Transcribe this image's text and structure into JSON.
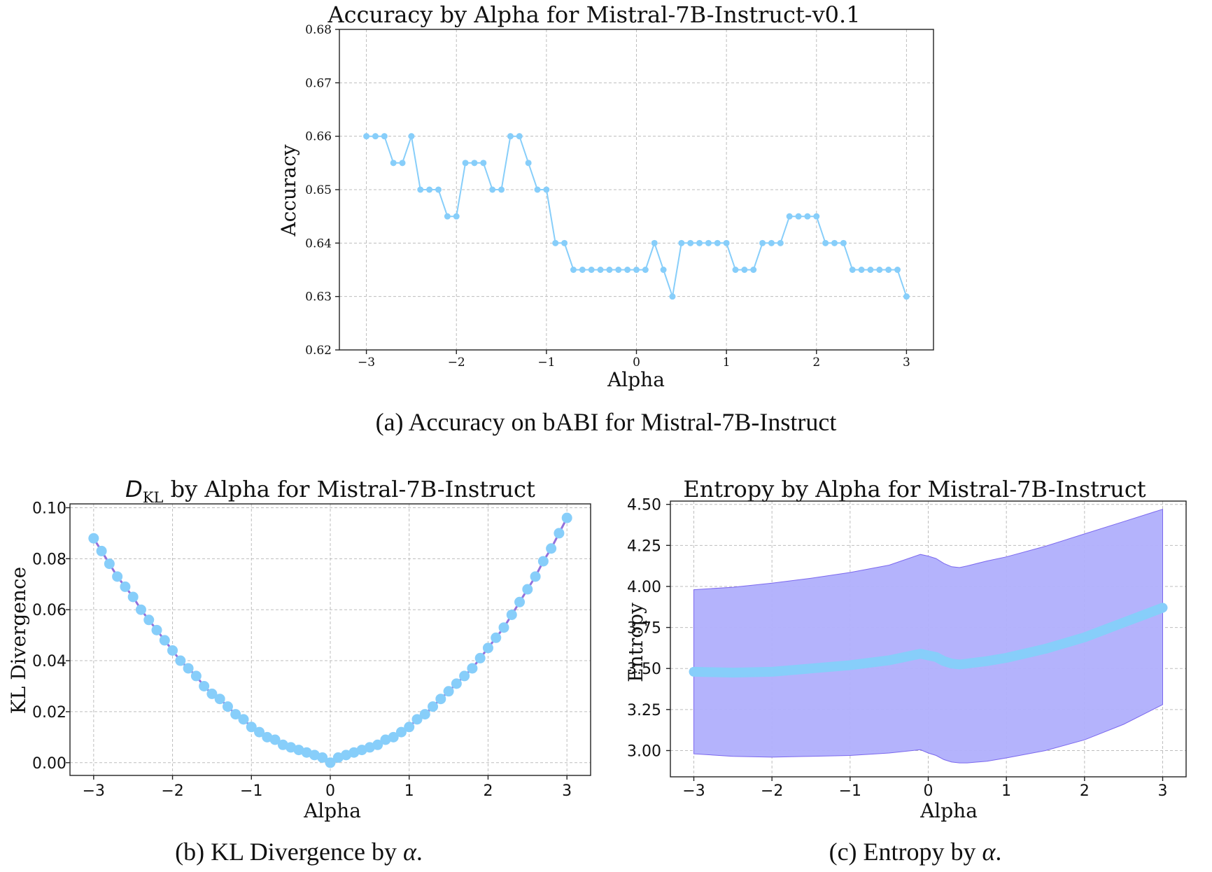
{
  "colors": {
    "marker": "#87CEFA",
    "kl_line": "#9370DB",
    "band": "#B0AFFC",
    "band_edge": "#7B68EE",
    "grid": "#BDBDBD"
  },
  "chart_data": [
    {
      "id": "a",
      "type": "line",
      "title": "Accuracy by Alpha for Mistral-7B-Instruct-v0.1",
      "xlabel": "Alpha",
      "ylabel": "Accuracy",
      "caption": "(a) Accuracy on bABI for Mistral-7B-Instruct",
      "xlim": [
        -3.3,
        3.3
      ],
      "ylim": [
        0.62,
        0.68
      ],
      "xticks": [
        -3,
        -2,
        -1,
        0,
        1,
        2,
        3
      ],
      "xtick_labels": [
        "−3",
        "−2",
        "−1",
        "0",
        "1",
        "2",
        "3"
      ],
      "yticks": [
        0.62,
        0.63,
        0.64,
        0.65,
        0.66,
        0.67,
        0.68
      ],
      "ytick_labels": [
        "0.62",
        "0.63",
        "0.64",
        "0.65",
        "0.66",
        "0.67",
        "0.68"
      ],
      "grid": true,
      "x": [
        -3.0,
        -2.9,
        -2.8,
        -2.7,
        -2.6,
        -2.5,
        -2.4,
        -2.3,
        -2.2,
        -2.1,
        -2.0,
        -1.9,
        -1.8,
        -1.7,
        -1.6,
        -1.5,
        -1.4,
        -1.3,
        -1.2,
        -1.1,
        -1.0,
        -0.9,
        -0.8,
        -0.7,
        -0.6,
        -0.5,
        -0.4,
        -0.3,
        -0.2,
        -0.1,
        0.0,
        0.1,
        0.2,
        0.3,
        0.4,
        0.5,
        0.6,
        0.7,
        0.8,
        0.9,
        1.0,
        1.1,
        1.2,
        1.3,
        1.4,
        1.5,
        1.6,
        1.7,
        1.8,
        1.9,
        2.0,
        2.1,
        2.2,
        2.3,
        2.4,
        2.5,
        2.6,
        2.7,
        2.8,
        2.9,
        3.0
      ],
      "series": [
        {
          "values": [
            0.66,
            0.66,
            0.66,
            0.655,
            0.655,
            0.66,
            0.65,
            0.65,
            0.65,
            0.645,
            0.645,
            0.655,
            0.655,
            0.655,
            0.65,
            0.65,
            0.66,
            0.66,
            0.655,
            0.65,
            0.65,
            0.64,
            0.64,
            0.635,
            0.635,
            0.635,
            0.635,
            0.635,
            0.635,
            0.635,
            0.635,
            0.635,
            0.64,
            0.635,
            0.63,
            0.64,
            0.64,
            0.64,
            0.64,
            0.64,
            0.64,
            0.635,
            0.635,
            0.635,
            0.64,
            0.64,
            0.64,
            0.645,
            0.645,
            0.645,
            0.645,
            0.64,
            0.64,
            0.64,
            0.635,
            0.635,
            0.635,
            0.635,
            0.635,
            0.635,
            0.63
          ]
        }
      ]
    },
    {
      "id": "b",
      "type": "line",
      "title_prefix": "D",
      "title_sub": "KL",
      "title_rest": " by Alpha for Mistral-7B-Instruct",
      "xlabel": "Alpha",
      "ylabel": "KL Divergence",
      "caption_text": "(b) KL Divergence by ",
      "caption_symbol": "α",
      "caption_end": ".",
      "xlim": [
        -3.3,
        3.3
      ],
      "ylim": [
        -0.005,
        0.1015
      ],
      "xticks": [
        -3,
        -2,
        -1,
        0,
        1,
        2,
        3
      ],
      "xtick_labels": [
        "−3",
        "−2",
        "−1",
        "0",
        "1",
        "2",
        "3"
      ],
      "yticks": [
        0.0,
        0.02,
        0.04,
        0.06,
        0.08,
        0.1
      ],
      "ytick_labels": [
        "0.00",
        "0.02",
        "0.04",
        "0.06",
        "0.08",
        "0.10"
      ],
      "grid": true,
      "x": [
        -3.0,
        -2.9,
        -2.8,
        -2.7,
        -2.6,
        -2.5,
        -2.4,
        -2.3,
        -2.2,
        -2.1,
        -2.0,
        -1.9,
        -1.8,
        -1.7,
        -1.6,
        -1.5,
        -1.4,
        -1.3,
        -1.2,
        -1.1,
        -1.0,
        -0.9,
        -0.8,
        -0.7,
        -0.6,
        -0.5,
        -0.4,
        -0.3,
        -0.2,
        -0.1,
        0.0,
        0.1,
        0.2,
        0.3,
        0.4,
        0.5,
        0.6,
        0.7,
        0.8,
        0.9,
        1.0,
        1.1,
        1.2,
        1.3,
        1.4,
        1.5,
        1.6,
        1.7,
        1.8,
        1.9,
        2.0,
        2.1,
        2.2,
        2.3,
        2.4,
        2.5,
        2.6,
        2.7,
        2.8,
        2.9,
        3.0
      ],
      "series": [
        {
          "values": [
            0.088,
            0.083,
            0.078,
            0.073,
            0.069,
            0.065,
            0.06,
            0.056,
            0.052,
            0.048,
            0.044,
            0.04,
            0.037,
            0.034,
            0.03,
            0.027,
            0.025,
            0.022,
            0.019,
            0.017,
            0.014,
            0.012,
            0.01,
            0.009,
            0.007,
            0.006,
            0.005,
            0.004,
            0.003,
            0.002,
            0.0,
            0.002,
            0.003,
            0.004,
            0.005,
            0.006,
            0.007,
            0.009,
            0.01,
            0.012,
            0.014,
            0.017,
            0.019,
            0.022,
            0.025,
            0.028,
            0.031,
            0.034,
            0.037,
            0.041,
            0.045,
            0.049,
            0.053,
            0.058,
            0.063,
            0.068,
            0.073,
            0.079,
            0.084,
            0.09,
            0.096
          ]
        }
      ]
    },
    {
      "id": "c",
      "type": "area",
      "title": "Entropy by Alpha for Mistral-7B-Instruct",
      "xlabel": "Alpha",
      "ylabel": "Entropy",
      "caption_text": "(c) Entropy by ",
      "caption_symbol": "α",
      "caption_end": ".",
      "xlim": [
        -3.3,
        3.3
      ],
      "ylim": [
        2.84,
        4.52
      ],
      "xticks": [
        -3,
        -2,
        -1,
        0,
        1,
        2,
        3
      ],
      "xtick_labels": [
        "−3",
        "−2",
        "−1",
        "0",
        "1",
        "2",
        "3"
      ],
      "yticks": [
        3.0,
        3.25,
        3.5,
        3.75,
        4.0,
        4.25,
        4.5
      ],
      "ytick_labels": [
        "3.00",
        "3.25",
        "3.50",
        "3.75",
        "4.00",
        "4.25",
        "4.50"
      ],
      "grid": true,
      "x": [
        -3.0,
        -2.5,
        -2.0,
        -1.5,
        -1.0,
        -0.5,
        -0.1,
        0.0,
        0.1,
        0.2,
        0.3,
        0.4,
        0.5,
        0.75,
        1.0,
        1.5,
        2.0,
        2.5,
        3.0
      ],
      "series": [
        {
          "values": [
            3.48,
            3.475,
            3.48,
            3.5,
            3.52,
            3.55,
            3.59,
            3.58,
            3.57,
            3.545,
            3.53,
            3.525,
            3.53,
            3.545,
            3.565,
            3.62,
            3.69,
            3.78,
            3.87
          ],
          "lower": [
            2.98,
            2.965,
            2.96,
            2.965,
            2.97,
            2.985,
            3.005,
            2.985,
            2.97,
            2.945,
            2.93,
            2.925,
            2.925,
            2.935,
            2.955,
            3.0,
            3.065,
            3.16,
            3.28
          ],
          "upper": [
            3.98,
            3.995,
            4.02,
            4.05,
            4.085,
            4.13,
            4.195,
            4.185,
            4.17,
            4.14,
            4.12,
            4.115,
            4.125,
            4.155,
            4.18,
            4.245,
            4.32,
            4.395,
            4.47
          ]
        }
      ]
    }
  ]
}
